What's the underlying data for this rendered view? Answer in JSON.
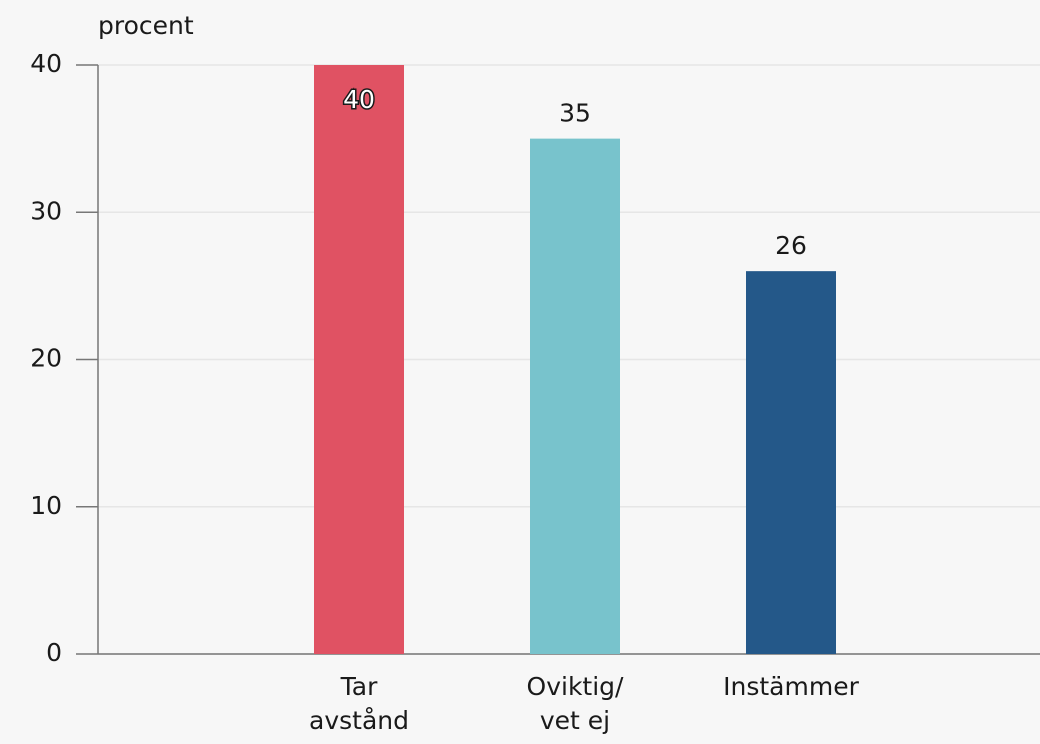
{
  "chart_data": {
    "type": "bar",
    "y_axis_label": "procent",
    "categories": [
      "Tar\navstånd",
      "Oviktig/\nvet ej",
      "Instämmer"
    ],
    "values": [
      40,
      35,
      26
    ],
    "colors": [
      "#e05263",
      "#78c3cc",
      "#245889"
    ],
    "ylim": [
      0,
      40
    ],
    "yticks": [
      0,
      10,
      20,
      30,
      40
    ],
    "grid": true
  }
}
